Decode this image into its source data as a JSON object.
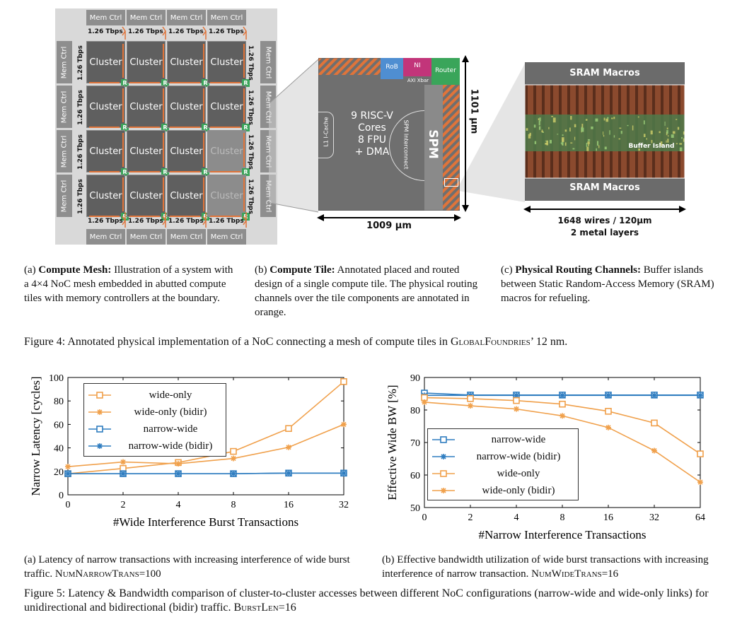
{
  "figure4": {
    "mesh": {
      "cluster_label": "Cluster",
      "mem_ctrl_label": "Mem Ctrl",
      "router_label": "R",
      "bandwidth_label": "1.26 Tbps"
    },
    "tile": {
      "rob_label": "RoB",
      "ni_label": "NI",
      "axi_xbar_label": "AXI Xbar",
      "router_label": "Router",
      "icache_label": "L1 I-Cache",
      "cores_label": "9 RISC-V Cores 8 FPU + DMA",
      "cores_lines": [
        "9 RISC-V",
        "Cores",
        "8 FPU",
        "+ DMA"
      ],
      "spm_interconnect_label": "SPM Interconnect",
      "spm_label": "SPM",
      "height_label": "1101 µm",
      "width_label": "1009 µm"
    },
    "sram": {
      "top_label": "SRAM Macros",
      "middle_label": "Buffer Island",
      "bottom_label": "SRAM Macros",
      "wires_label": "1648 wires / 120µm",
      "layers_label": "2 metal layers"
    },
    "subcaptions": {
      "a_prefix": "(a) ",
      "a_title": "Compute Mesh:",
      "a_text": " Illustration of a system with a 4×4 NoC mesh embedded in abutted compute tiles with memory controllers at the boundary.",
      "b_prefix": "(b) ",
      "b_title": "Compute Tile:",
      "b_text": " Annotated placed and routed design of a single compute tile. The physical routing channels over the tile components are annotated in orange.",
      "c_prefix": "(c) ",
      "c_title": "Physical Routing Channels:",
      "c_text": " Buffer islands between Static Random-Access Memory (SRAM) macros for refueling."
    },
    "caption_main": "Figure 4: Annotated physical implementation of a NoC connecting a mesh of compute tiles in ",
    "caption_org": "GlobalFoundries",
    "caption_end": "’ 12 nm."
  },
  "chart_data": [
    {
      "type": "line",
      "xlabel": "#Wide Interference Burst Transactions",
      "ylabel": "Narrow Latency [cycles]",
      "categories": [
        "0",
        "2",
        "4",
        "8",
        "16",
        "32"
      ],
      "ylim": [
        0,
        100
      ],
      "yticks": [
        "0",
        "20",
        "40",
        "60",
        "80",
        "100"
      ],
      "legend_position": "top-left",
      "series": [
        {
          "name": "wide-only",
          "marker": "square",
          "color": "#f0a04b",
          "values": [
            18,
            22.5,
            27.5,
            37,
            56.5,
            96.5
          ]
        },
        {
          "name": "wide-only (bidir)",
          "marker": "star",
          "color": "#f0a04b",
          "values": [
            24,
            28,
            26.5,
            31,
            40.5,
            60
          ]
        },
        {
          "name": "narrow-wide",
          "marker": "square",
          "color": "#2f7dc0",
          "values": [
            18,
            18,
            18,
            18,
            18.5,
            18.5
          ]
        },
        {
          "name": "narrow-wide (bidir)",
          "marker": "star",
          "color": "#2f7dc0",
          "values": [
            18,
            18,
            18,
            18,
            18.5,
            18.5
          ]
        }
      ]
    },
    {
      "type": "line",
      "xlabel": "#Narrow Interference Transactions",
      "ylabel": "Effective Wide BW [%]",
      "categories": [
        "0",
        "2",
        "4",
        "8",
        "16",
        "32",
        "64"
      ],
      "ylim": [
        50,
        90
      ],
      "yticks": [
        "50",
        "60",
        "70",
        "80",
        "90"
      ],
      "legend_position": "bottom-left",
      "series": [
        {
          "name": "narrow-wide",
          "marker": "square",
          "color": "#2f7dc0",
          "values": [
            85.2,
            84.6,
            84.6,
            84.6,
            84.6,
            84.6,
            84.6
          ]
        },
        {
          "name": "narrow-wide (bidir)",
          "marker": "star",
          "color": "#2f7dc0",
          "values": [
            84.5,
            84.5,
            84.5,
            84.5,
            84.5,
            84.5,
            84.5
          ]
        },
        {
          "name": "wide-only",
          "marker": "square",
          "color": "#f0a04b",
          "values": [
            83.8,
            83.5,
            82.9,
            81.8,
            79.6,
            76.0,
            66.5
          ]
        },
        {
          "name": "wide-only (bidir)",
          "marker": "star",
          "color": "#f0a04b",
          "values": [
            82.4,
            81.3,
            80.3,
            78.2,
            74.6,
            67.5,
            57.8
          ]
        }
      ]
    }
  ],
  "figure5": {
    "sub_a": "(a) Latency of narrow transactions with increasing interference of wide burst traffic. ",
    "sub_a_param": "NumNarrowTrans",
    "sub_a_val": "=100",
    "sub_b": "(b) Effective bandwidth utilization of wide burst transactions with increasing interference of narrow transaction. ",
    "sub_b_param": "NumWideTrans",
    "sub_b_val": "=16",
    "caption": "Figure 5: Latency & Bandwidth comparison of cluster-to-cluster accesses between different NoC configurations (narrow-wide and wide-only links) for unidirectional and bidirectional (bidir) traffic. ",
    "caption_param": "BurstLen",
    "caption_val": "=16"
  }
}
